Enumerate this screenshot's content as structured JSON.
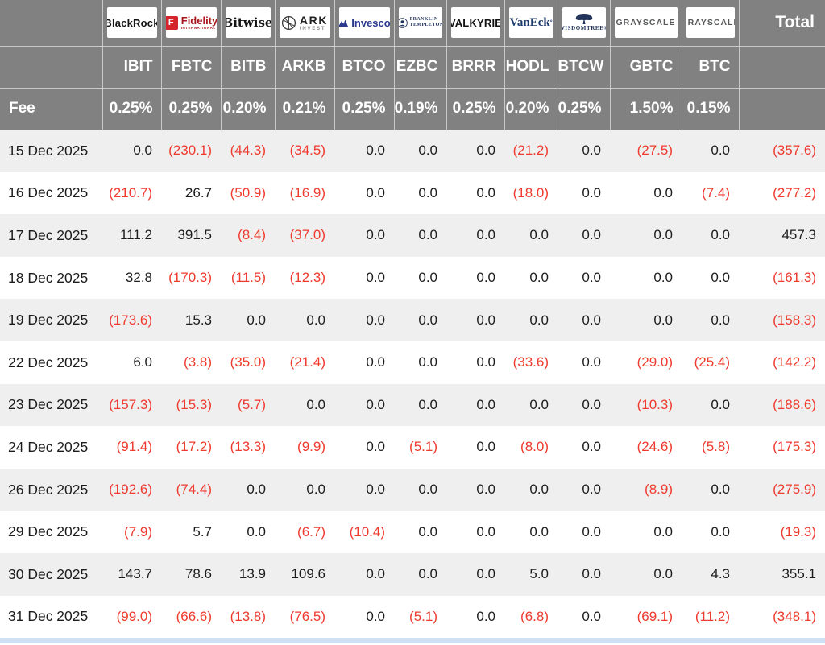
{
  "table": {
    "fee_label": "Fee",
    "total_label": "Total",
    "providers": [
      {
        "name": "BlackRock",
        "ticker": "IBIT",
        "fee": "0.25%",
        "logo_text": "BlackRock"
      },
      {
        "name": "Fidelity",
        "ticker": "FBTC",
        "fee": "0.25%",
        "logo_badge": "F",
        "logo_text": "Fidelity",
        "logo_sub": "INTERNATIONAL"
      },
      {
        "name": "Bitwise",
        "ticker": "BITB",
        "fee": "0.20%",
        "logo_text": "Bitwise"
      },
      {
        "name": "ARK Invest",
        "ticker": "ARKB",
        "fee": "0.21%",
        "logo_text": "ARK",
        "logo_sub": "INVEST"
      },
      {
        "name": "Invesco",
        "ticker": "BTCO",
        "fee": "0.25%",
        "logo_text": "Invesco"
      },
      {
        "name": "Franklin Templeton",
        "ticker": "EZBC",
        "fee": "0.19%",
        "logo_text": "FRANKLIN",
        "logo_sub": "TEMPLETON"
      },
      {
        "name": "Valkyrie",
        "ticker": "BRRR",
        "fee": "0.25%",
        "logo_text": "VALKYRIE"
      },
      {
        "name": "VanEck",
        "ticker": "HODL",
        "fee": "0.20%",
        "logo_text": "VanEck"
      },
      {
        "name": "WisdomTree",
        "ticker": "BTCW",
        "fee": "0.25%",
        "logo_text": "WISDOMTREE®"
      },
      {
        "name": "Grayscale",
        "ticker": "GBTC",
        "fee": "1.50%",
        "logo_text": "GRAYSCALE"
      },
      {
        "name": "Grayscale",
        "ticker": "BTC",
        "fee": "0.15%",
        "logo_text": "GRAYSCALE"
      }
    ],
    "rows": [
      {
        "date": "15 Dec 2025",
        "values": [
          "0.0",
          "(230.1)",
          "(44.3)",
          "(34.5)",
          "0.0",
          "0.0",
          "0.0",
          "(21.2)",
          "0.0",
          "(27.5)",
          "0.0"
        ],
        "total": "(357.6)"
      },
      {
        "date": "16 Dec 2025",
        "values": [
          "(210.7)",
          "26.7",
          "(50.9)",
          "(16.9)",
          "0.0",
          "0.0",
          "0.0",
          "(18.0)",
          "0.0",
          "0.0",
          "(7.4)"
        ],
        "total": "(277.2)"
      },
      {
        "date": "17 Dec 2025",
        "values": [
          "111.2",
          "391.5",
          "(8.4)",
          "(37.0)",
          "0.0",
          "0.0",
          "0.0",
          "0.0",
          "0.0",
          "0.0",
          "0.0"
        ],
        "total": "457.3"
      },
      {
        "date": "18 Dec 2025",
        "values": [
          "32.8",
          "(170.3)",
          "(11.5)",
          "(12.3)",
          "0.0",
          "0.0",
          "0.0",
          "0.0",
          "0.0",
          "0.0",
          "0.0"
        ],
        "total": "(161.3)"
      },
      {
        "date": "19 Dec 2025",
        "values": [
          "(173.6)",
          "15.3",
          "0.0",
          "0.0",
          "0.0",
          "0.0",
          "0.0",
          "0.0",
          "0.0",
          "0.0",
          "0.0"
        ],
        "total": "(158.3)"
      },
      {
        "date": "22 Dec 2025",
        "values": [
          "6.0",
          "(3.8)",
          "(35.0)",
          "(21.4)",
          "0.0",
          "0.0",
          "0.0",
          "(33.6)",
          "0.0",
          "(29.0)",
          "(25.4)"
        ],
        "total": "(142.2)"
      },
      {
        "date": "23 Dec 2025",
        "values": [
          "(157.3)",
          "(15.3)",
          "(5.7)",
          "0.0",
          "0.0",
          "0.0",
          "0.0",
          "0.0",
          "0.0",
          "(10.3)",
          "0.0"
        ],
        "total": "(188.6)"
      },
      {
        "date": "24 Dec 2025",
        "values": [
          "(91.4)",
          "(17.2)",
          "(13.3)",
          "(9.9)",
          "0.0",
          "(5.1)",
          "0.0",
          "(8.0)",
          "0.0",
          "(24.6)",
          "(5.8)"
        ],
        "total": "(175.3)"
      },
      {
        "date": "26 Dec 2025",
        "values": [
          "(192.6)",
          "(74.4)",
          "0.0",
          "0.0",
          "0.0",
          "0.0",
          "0.0",
          "0.0",
          "0.0",
          "(8.9)",
          "0.0"
        ],
        "total": "(275.9)"
      },
      {
        "date": "29 Dec 2025",
        "values": [
          "(7.9)",
          "5.7",
          "0.0",
          "(6.7)",
          "(10.4)",
          "0.0",
          "0.0",
          "0.0",
          "0.0",
          "0.0",
          "0.0"
        ],
        "total": "(19.3)"
      },
      {
        "date": "30 Dec 2025",
        "values": [
          "143.7",
          "78.6",
          "13.9",
          "109.6",
          "0.0",
          "0.0",
          "0.0",
          "5.0",
          "0.0",
          "0.0",
          "4.3"
        ],
        "total": "355.1"
      },
      {
        "date": "31 Dec 2025",
        "values": [
          "(99.0)",
          "(66.6)",
          "(13.8)",
          "(76.5)",
          "0.0",
          "(5.1)",
          "0.0",
          "(6.8)",
          "0.0",
          "(69.1)",
          "(11.2)"
        ],
        "total": "(348.1)"
      }
    ]
  },
  "colors": {
    "header_gray": "#818181",
    "negative_red": "#ef3a2e",
    "row_stripe": "#efefef",
    "bottom_bar_blue": "#cfe0f2"
  }
}
